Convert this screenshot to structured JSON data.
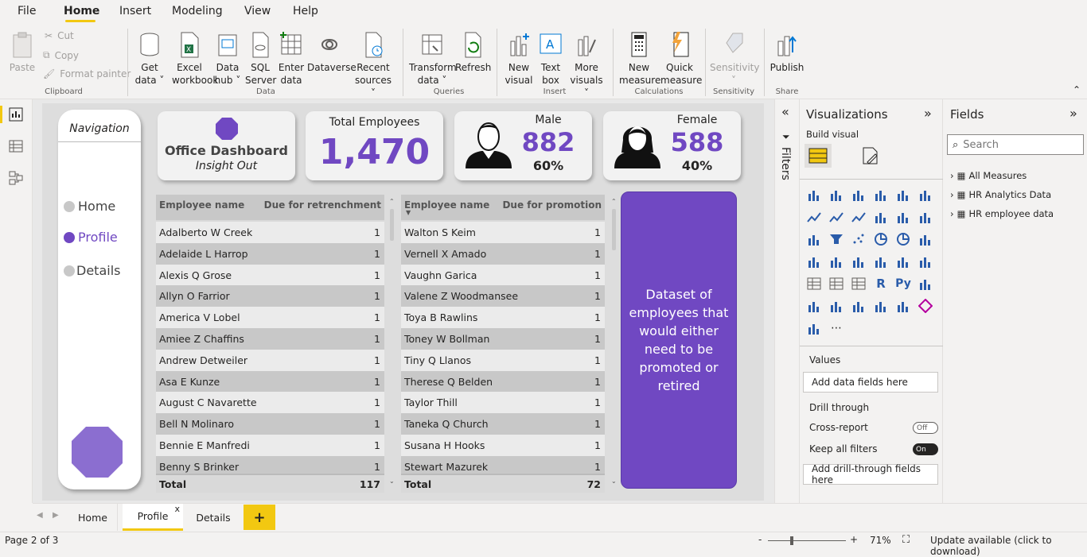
{
  "menu": {
    "file": "File",
    "home": "Home",
    "insert": "Insert",
    "modeling": "Modeling",
    "view": "View",
    "help": "Help"
  },
  "ribbon": {
    "paste": "Paste",
    "cut": "Cut",
    "copy": "Copy",
    "format_painter": "Format painter",
    "clipboard": "Clipboard",
    "get_data_1": "Get",
    "get_data_2": "data ˅",
    "excel_1": "Excel",
    "excel_2": "workbook",
    "hub_1": "Data",
    "hub_2": "hub ˅",
    "sql_1": "SQL",
    "sql_2": "Server",
    "enter_1": "Enter",
    "enter_2": "data",
    "dataverse": "Dataverse",
    "recent_1": "Recent",
    "recent_2": "sources ˅",
    "data_group": "Data",
    "transform_1": "Transform",
    "transform_2": "data ˅",
    "refresh": "Refresh",
    "queries": "Queries",
    "newvis_1": "New",
    "newvis_2": "visual",
    "textbox_1": "Text",
    "textbox_2": "box",
    "more_1": "More",
    "more_2": "visuals ˅",
    "insert_group": "Insert",
    "newm_1": "New",
    "newm_2": "measure",
    "quick_1": "Quick",
    "quick_2": "measure",
    "calculations": "Calculations",
    "sensitivity": "Sensitivity",
    "sens_arrow": "˅",
    "sensitivity_group": "Sensitivity",
    "publish": "Publish",
    "share": "Share"
  },
  "nav": {
    "title": "Navigation",
    "home": "Home",
    "profile": "Profile",
    "details": "Details"
  },
  "cards": {
    "dash_title": "Office Dashboard",
    "dash_sub": "Insight Out",
    "total_label": "Total Employees",
    "total_value": "1,470",
    "male_label": "Male",
    "male_value": "882",
    "male_pct": "60%",
    "female_label": "Female",
    "female_value": "588",
    "female_pct": "40%"
  },
  "table1": {
    "col1": "Employee name",
    "col2": "Due for retrenchment",
    "rows": [
      {
        "name": "Adalberto W Creek",
        "val": "1"
      },
      {
        "name": "Adelaide L Harrop",
        "val": "1"
      },
      {
        "name": "Alexis Q Grose",
        "val": "1"
      },
      {
        "name": "Allyn O Farrior",
        "val": "1"
      },
      {
        "name": "America V Lobel",
        "val": "1"
      },
      {
        "name": "Amiee Z Chaffins",
        "val": "1"
      },
      {
        "name": "Andrew Detweiler",
        "val": "1"
      },
      {
        "name": "Asa E Kunze",
        "val": "1"
      },
      {
        "name": "August C Navarette",
        "val": "1"
      },
      {
        "name": "Bell N Molinaro",
        "val": "1"
      },
      {
        "name": "Bennie E Manfredi",
        "val": "1"
      },
      {
        "name": "Benny S Brinker",
        "val": "1"
      }
    ],
    "total_label": "Total",
    "total_value": "117"
  },
  "table2": {
    "col1": "Employee name",
    "col2": "Due for promotion",
    "rows": [
      {
        "name": "Walton S Keim",
        "val": "1"
      },
      {
        "name": "Vernell X Amado",
        "val": "1"
      },
      {
        "name": "Vaughn Garica",
        "val": "1"
      },
      {
        "name": "Valene Z Woodmansee",
        "val": "1"
      },
      {
        "name": "Toya B Rawlins",
        "val": "1"
      },
      {
        "name": "Toney W Bollman",
        "val": "1"
      },
      {
        "name": "Tiny Q Llanos",
        "val": "1"
      },
      {
        "name": "Therese Q Belden",
        "val": "1"
      },
      {
        "name": "Taylor Thill",
        "val": "1"
      },
      {
        "name": "Taneka Q Church",
        "val": "1"
      },
      {
        "name": "Susana H Hooks",
        "val": "1"
      },
      {
        "name": "Stewart Mazurek",
        "val": "1"
      }
    ],
    "total_label": "Total",
    "total_value": "72"
  },
  "info_box": "Dataset of employees that would either need to be promoted or retired",
  "filters": {
    "label": "Filters"
  },
  "viz": {
    "title": "Visualizations",
    "build": "Build visual",
    "values": "Values",
    "add_data": "Add data fields here",
    "drill": "Drill through",
    "cross": "Cross-report",
    "cross_state": "Off",
    "keep": "Keep all filters",
    "keep_state": "On",
    "add_drill": "Add drill-through fields here"
  },
  "fields": {
    "title": "Fields",
    "search_placeholder": "Search",
    "items": [
      "All Measures",
      "HR Analytics Data",
      "HR employee data"
    ]
  },
  "tabs": {
    "home": "Home",
    "profile": "Profile",
    "details": "Details",
    "close": "x",
    "add": "+"
  },
  "status": {
    "page": "Page 2 of 3",
    "zoom_minus": "-",
    "zoom_plus": "+",
    "zoom": "71%",
    "update": "Update available (click to download)"
  },
  "colors": {
    "accent": "#7048c2",
    "highlight": "#f2c811"
  }
}
